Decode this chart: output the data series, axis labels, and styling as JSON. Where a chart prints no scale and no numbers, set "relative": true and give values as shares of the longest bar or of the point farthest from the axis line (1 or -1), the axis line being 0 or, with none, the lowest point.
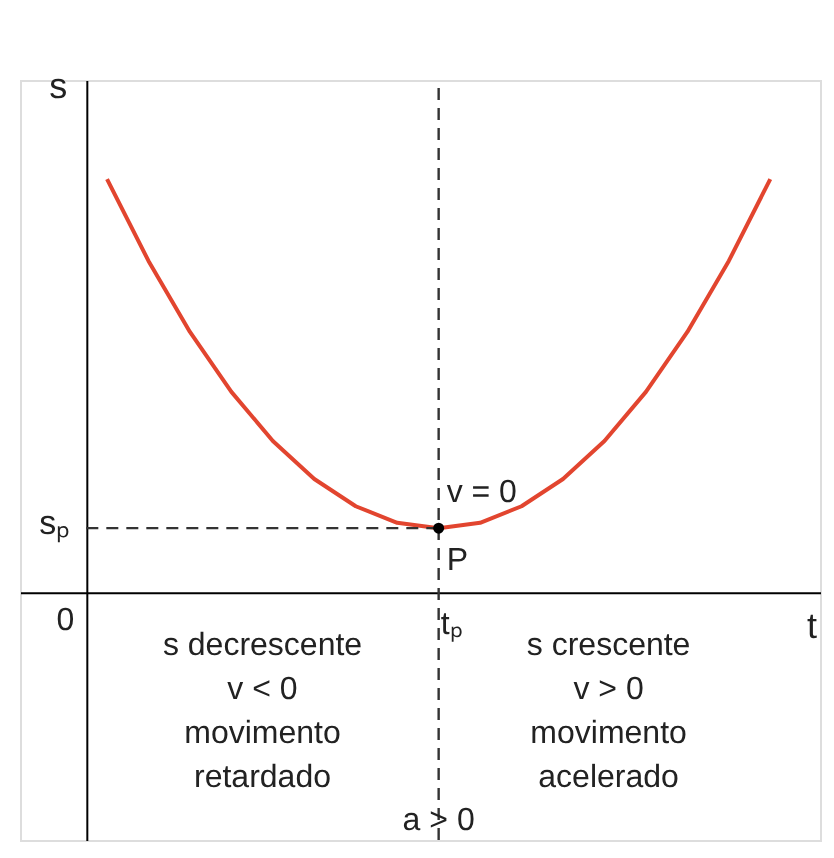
{
  "chart_data": {
    "type": "line",
    "relative": true,
    "xlabel": "t",
    "ylabel": "s",
    "categories": [
      null,
      null,
      null,
      null,
      null,
      null,
      null,
      null,
      null,
      null,
      null,
      null,
      null,
      null,
      null,
      null,
      null
    ],
    "series": [
      {
        "color": "#e2452f",
        "values": [
          1.0,
          0.802,
          0.63,
          0.485,
          0.366,
          0.274,
          0.208,
          0.168,
          0.155,
          0.168,
          0.208,
          0.274,
          0.366,
          0.485,
          0.63,
          0.802,
          1.0
        ]
      }
    ],
    "grid": false,
    "marker": "none",
    "line_style": "solid",
    "ref_lines": [
      {
        "axis": "x",
        "label": "a > 0",
        "line_style": "dashed",
        "color": "#333333"
      },
      {
        "axis": "y",
        "value": 0.155,
        "label": "sₚ",
        "line_style": "dashed",
        "color": "#333333"
      }
    ],
    "annotations": [
      "v = 0",
      "P",
      "0",
      "tₚ",
      "s decrescente\nv < 0\nmovimento\nretardado",
      "s crescente\nv > 0\nmovimento\nacelerado"
    ]
  }
}
